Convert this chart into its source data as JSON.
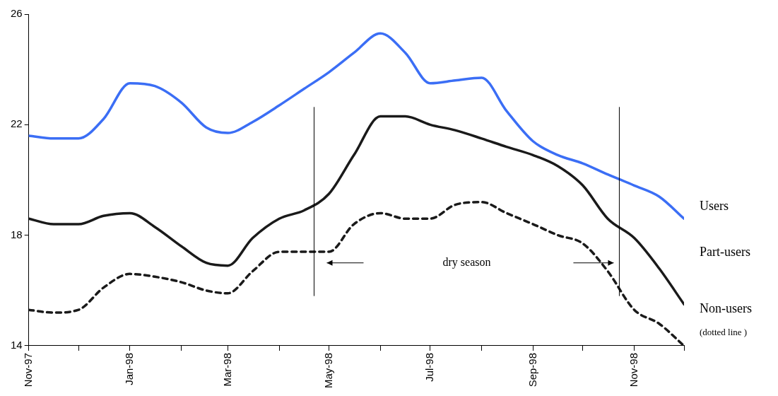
{
  "chart_data": {
    "type": "line",
    "x": [
      "1997-11-01",
      "1997-11-16",
      "1997-12-01",
      "1997-12-16",
      "1998-01-01",
      "1998-01-16",
      "1998-02-01",
      "1998-02-16",
      "1998-03-01",
      "1998-03-16",
      "1998-04-01",
      "1998-04-16",
      "1998-05-01",
      "1998-05-16",
      "1998-06-01",
      "1998-06-16",
      "1998-07-01",
      "1998-07-16",
      "1998-08-01",
      "1998-08-16",
      "1998-09-01",
      "1998-09-16",
      "1998-10-01",
      "1998-10-16",
      "1998-11-01",
      "1998-11-16",
      "1998-12-01"
    ],
    "series": [
      {
        "name": "Users",
        "color": "#3b6ef5",
        "values": [
          21.6,
          21.5,
          21.5,
          22.2,
          23.5,
          23.4,
          22.8,
          21.9,
          21.7,
          22.1,
          22.7,
          23.3,
          23.9,
          24.6,
          25.3,
          24.6,
          23.5,
          23.6,
          23.7,
          22.5,
          21.4,
          20.9,
          20.6,
          20.2,
          19.8,
          19.4,
          18.6
        ]
      },
      {
        "name": "Part-users",
        "color": "#1a1a1a",
        "values": [
          18.6,
          18.4,
          18.4,
          18.7,
          18.8,
          18.3,
          17.6,
          17.0,
          16.9,
          17.9,
          18.6,
          18.9,
          19.5,
          20.9,
          22.3,
          22.3,
          22.0,
          21.8,
          21.5,
          21.2,
          20.9,
          20.5,
          19.8,
          18.6,
          17.9,
          16.8,
          15.5
        ]
      },
      {
        "name": "Non-users",
        "color": "#1a1a1a",
        "line_style": "dashed",
        "values": [
          15.3,
          15.2,
          15.3,
          16.1,
          16.6,
          16.5,
          16.3,
          16.0,
          15.9,
          16.7,
          17.4,
          17.4,
          17.4,
          18.4,
          18.8,
          18.6,
          18.6,
          19.1,
          19.2,
          18.8,
          18.4,
          18.0,
          17.7,
          16.7,
          15.3,
          14.8,
          14.0
        ]
      }
    ],
    "xlim": [
      "1997-11",
      "1998-12"
    ],
    "xticks": [
      {
        "value": "1997-11",
        "label": "Nov-97"
      },
      {
        "value": "1997-12",
        "label": null
      },
      {
        "value": "1998-01",
        "label": "Jan-98"
      },
      {
        "value": "1998-02",
        "label": null
      },
      {
        "value": "1998-03",
        "label": "Mar-98"
      },
      {
        "value": "1998-04",
        "label": null
      },
      {
        "value": "1998-05",
        "label": "May-98"
      },
      {
        "value": "1998-06",
        "label": null
      },
      {
        "value": "1998-07",
        "label": "Jul-98"
      },
      {
        "value": "1998-08",
        "label": null
      },
      {
        "value": "1998-09",
        "label": "Sep-98"
      },
      {
        "value": "1998-10",
        "label": null
      },
      {
        "value": "1998-11",
        "label": "Nov-98"
      },
      {
        "value": "1998-12",
        "label": null
      }
    ],
    "ylim": [
      14,
      26
    ],
    "yticks": [
      14,
      18,
      22,
      26
    ],
    "grid": false,
    "legend": "right",
    "ref_lines": [
      {
        "axis": "x",
        "value": "1998-04-22"
      },
      {
        "axis": "x",
        "value": "1998-10-23"
      }
    ],
    "annotations": [
      "(dotted line )",
      "dry season"
    ]
  }
}
